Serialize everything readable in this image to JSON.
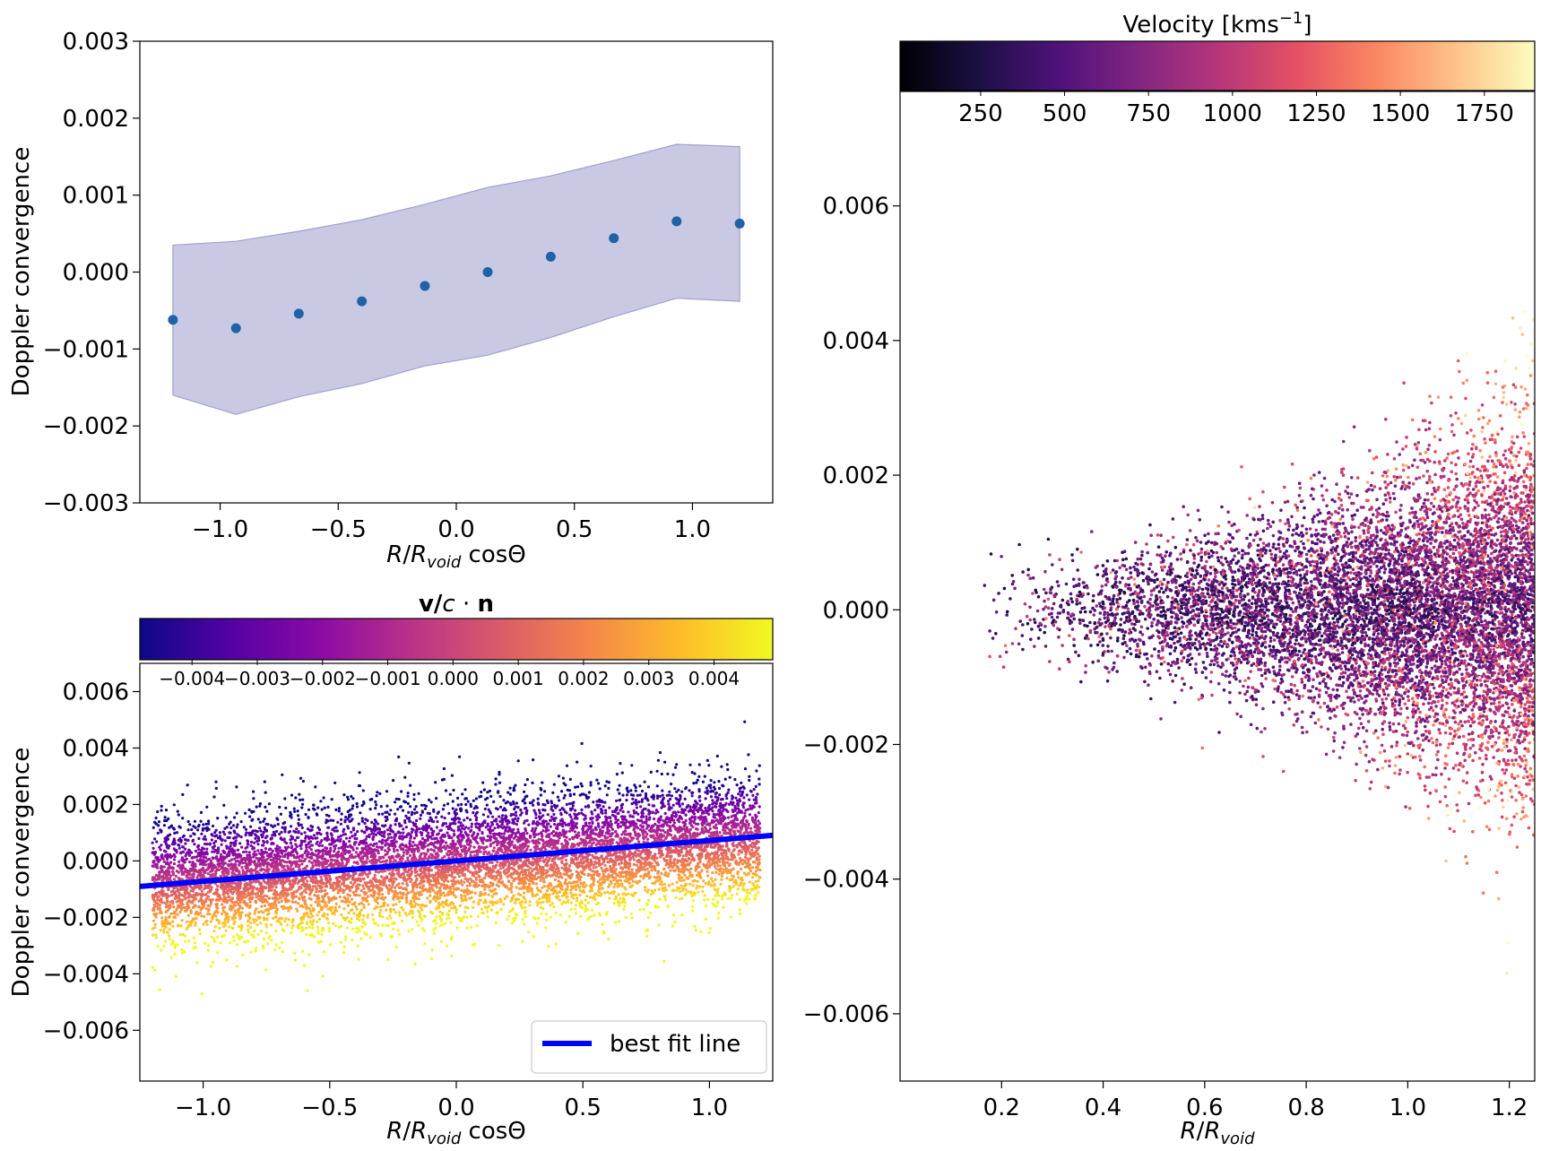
{
  "chart_data": [
    {
      "id": "top-left",
      "type": "scatter",
      "xlabel": "R/R_void cosΘ",
      "ylabel": "Doppler convergence",
      "xlim": [
        -1.34,
        1.34
      ],
      "ylim": [
        -0.003,
        0.003
      ],
      "xticks": [
        "−1.0",
        "−0.5",
        "0.0",
        "0.5",
        "1.0"
      ],
      "xtick_values": [
        -1.0,
        -0.5,
        0.0,
        0.5,
        1.0
      ],
      "yticks": [
        "−0.003",
        "−0.002",
        "−0.001",
        "0.000",
        "0.001",
        "0.002",
        "0.003"
      ],
      "ytick_values": [
        -0.003,
        -0.002,
        -0.001,
        0.0,
        0.001,
        0.002,
        0.003
      ],
      "point_color": "#1f62a8",
      "band_color": "#c9c9e4",
      "band_edge_color": "#a0a0d0",
      "series": [
        {
          "x": [
            -1.2,
            -0.933,
            -0.667,
            -0.4,
            -0.133,
            0.133,
            0.4,
            0.667,
            0.933,
            1.2
          ],
          "y": [
            -0.00062,
            -0.00073,
            -0.00054,
            -0.00038,
            -0.00018,
            0.0,
            0.0002,
            0.00044,
            0.00066,
            0.00063
          ],
          "band_low": [
            -0.0016,
            -0.00185,
            -0.00162,
            -0.00145,
            -0.00122,
            -0.00108,
            -0.00085,
            -0.00058,
            -0.00034,
            -0.00038
          ],
          "band_high": [
            0.00035,
            0.0004,
            0.00053,
            0.00068,
            0.00088,
            0.0011,
            0.00125,
            0.00145,
            0.00166,
            0.00163
          ]
        }
      ],
      "grid": false
    },
    {
      "id": "bottom-left",
      "type": "scatter",
      "xlabel": "R/R_void cosΘ",
      "ylabel": "Doppler convergence",
      "xlim": [
        -1.25,
        1.25
      ],
      "ylim": [
        -0.0078,
        0.007
      ],
      "xticks": [
        "−1.0",
        "−0.5",
        "0.0",
        "0.5",
        "1.0"
      ],
      "xtick_values": [
        -1.0,
        -0.5,
        0.0,
        0.5,
        1.0
      ],
      "yticks": [
        "−0.006",
        "−0.004",
        "−0.002",
        "0.000",
        "0.002",
        "0.004",
        "0.006"
      ],
      "ytick_values": [
        -0.006,
        -0.004,
        -0.002,
        0.0,
        0.002,
        0.004,
        0.006
      ],
      "colorbar": {
        "title": "v/c · n",
        "colormap": "plasma",
        "range": [
          -0.0048,
          0.0049
        ],
        "ticks": [
          "−0.004",
          "−0.003",
          "−0.002",
          "−0.001",
          "0.000",
          "0.001",
          "0.002",
          "0.003",
          "0.004"
        ],
        "tick_values": [
          -0.004,
          -0.003,
          -0.002,
          -0.001,
          0.0,
          0.001,
          0.002,
          0.003,
          0.004
        ],
        "colors": [
          "#0d0887",
          "#5402a3",
          "#8b0aa5",
          "#b93289",
          "#db5c68",
          "#f48849",
          "#febd2a",
          "#f0f921"
        ]
      },
      "fit_line": {
        "label": "best fit line",
        "color": "#0000ff",
        "slope": 0.0007,
        "intercept": 0.0,
        "x": [
          -1.25,
          1.25
        ]
      },
      "legend": {
        "position": "lower-right",
        "entries": [
          "best fit line"
        ]
      },
      "scatter_model": {
        "n": 9000,
        "seed": 7,
        "x_range": [
          -1.2,
          1.2
        ],
        "y_spread": 0.0011
      },
      "grid": false
    },
    {
      "id": "right",
      "type": "scatter",
      "xlabel": "R/R_void",
      "ylabel": "",
      "xlim": [
        0.0,
        1.25
      ],
      "ylim": [
        -0.007,
        0.0077
      ],
      "xticks": [
        "0.2",
        "0.4",
        "0.6",
        "0.8",
        "1.0",
        "1.2"
      ],
      "xtick_values": [
        0.2,
        0.4,
        0.6,
        0.8,
        1.0,
        1.2
      ],
      "yticks": [
        "−0.006",
        "−0.004",
        "−0.002",
        "0.000",
        "0.002",
        "0.004",
        "0.006"
      ],
      "ytick_values": [
        -0.006,
        -0.004,
        -0.002,
        0.0,
        0.002,
        0.004,
        0.006
      ],
      "colorbar": {
        "title": "Velocity [kms⁻¹]",
        "colormap": "magma",
        "range": [
          10,
          1900
        ],
        "ticks": [
          "250",
          "500",
          "750",
          "1000",
          "1250",
          "1500",
          "1750"
        ],
        "tick_values": [
          250,
          500,
          750,
          1000,
          1250,
          1500,
          1750
        ],
        "colors": [
          "#000004",
          "#1c1044",
          "#4f127b",
          "#812581",
          "#b5367a",
          "#e55064",
          "#fb8761",
          "#fec287",
          "#fcfdbf"
        ]
      },
      "scatter_model": {
        "n": 9000,
        "seed": 13,
        "x_range": [
          0.1,
          1.25
        ]
      },
      "grid": false
    }
  ]
}
